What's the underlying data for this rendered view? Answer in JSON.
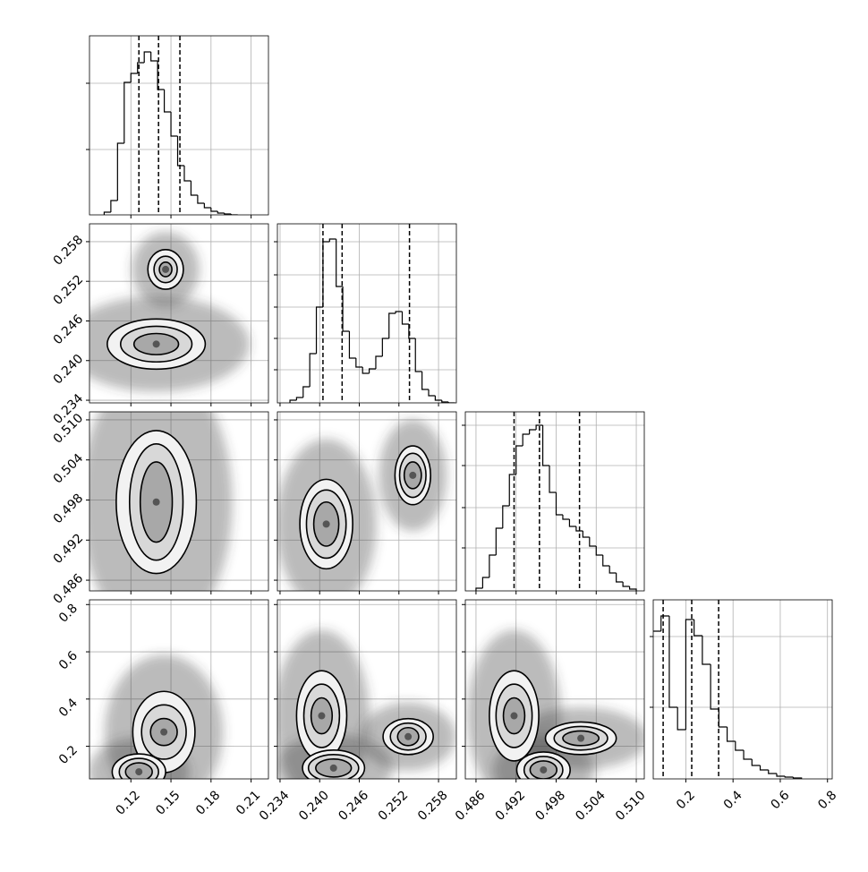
{
  "chart_data": {
    "type": "corner",
    "variables": [
      {
        "lim": [
          0.089,
          0.223
        ],
        "ticks": [
          0.12,
          0.15,
          0.18,
          0.21
        ],
        "quantiles": [
          0.126,
          0.1407,
          0.1567
        ],
        "hist": {
          "bins": [
            0.1,
            0.105,
            0.11,
            0.115,
            0.12,
            0.125,
            0.13,
            0.135,
            0.14,
            0.145,
            0.15,
            0.155,
            0.16,
            0.165,
            0.17,
            0.175,
            0.18,
            0.185,
            0.19,
            0.195,
            0.2
          ],
          "values": [
            3,
            16,
            80,
            148,
            158,
            170,
            182,
            172,
            140,
            115,
            88,
            55,
            38,
            22,
            13,
            8,
            4,
            2,
            1,
            0
          ],
          "ylim": [
            0,
            200
          ],
          "yticks": [
            73,
            147
          ]
        }
      },
      {
        "lim": [
          0.2336,
          0.2607
        ],
        "ticks": [
          0.234,
          {
            "value": 0.24,
            "label": "0.240"
          },
          0.246,
          0.252,
          0.258
        ],
        "quantiles": [
          0.2405,
          0.2434,
          0.2536
        ],
        "hist": {
          "bins": [
            0.2355,
            0.2365,
            0.2375,
            0.2385,
            0.2395,
            0.2405,
            0.2415,
            0.2425,
            0.2435,
            0.2445,
            0.2455,
            0.2465,
            0.2475,
            0.2485,
            0.2495,
            0.2505,
            0.2515,
            0.2525,
            0.2535,
            0.2545,
            0.2555,
            0.2565,
            0.2575,
            0.2585,
            0.2595,
            0.2605
          ],
          "values": [
            3,
            6,
            18,
            55,
            107,
            180,
            183,
            130,
            80,
            50,
            40,
            33,
            38,
            52,
            72,
            100,
            102,
            88,
            72,
            35,
            15,
            8,
            3,
            1,
            0
          ],
          "ylim": [
            0,
            200
          ],
          "yticks": [
            37,
            72,
            107,
            143,
            180
          ]
        }
      },
      {
        "lim": [
          0.4844,
          0.5112
        ],
        "ticks": [
          0.486,
          0.492,
          0.498,
          0.504,
          {
            "value": 0.51,
            "label": "0.510"
          }
        ],
        "quantiles": [
          0.4917,
          0.4955,
          0.5015
        ],
        "hist": {
          "bins": [
            0.486,
            0.487,
            0.488,
            0.489,
            0.49,
            0.491,
            0.492,
            0.493,
            0.494,
            0.495,
            0.496,
            0.497,
            0.498,
            0.499,
            0.5,
            0.501,
            0.502,
            0.503,
            0.504,
            0.505,
            0.506,
            0.507,
            0.508,
            0.509,
            0.51
          ],
          "values": [
            3,
            15,
            40,
            70,
            95,
            130,
            162,
            175,
            180,
            185,
            140,
            110,
            85,
            80,
            72,
            67,
            60,
            50,
            40,
            28,
            20,
            10,
            5,
            2
          ],
          "ylim": [
            0,
            200
          ],
          "yticks": [
            48,
            93,
            140,
            185
          ]
        }
      },
      {
        "lim": [
          0.062,
          0.82
        ],
        "ticks": [
          0.2,
          0.4,
          0.6,
          0.8
        ],
        "quantiles": [
          0.104,
          0.225,
          0.339
        ],
        "hist": {
          "bins": [
            0.06,
            0.095,
            0.13,
            0.165,
            0.2,
            0.235,
            0.27,
            0.305,
            0.34,
            0.375,
            0.41,
            0.445,
            0.48,
            0.515,
            0.55,
            0.585,
            0.62,
            0.655,
            0.69
          ],
          "values": [
            165,
            182,
            80,
            55,
            178,
            160,
            128,
            78,
            58,
            42,
            32,
            22,
            15,
            10,
            6,
            3,
            2,
            1
          ],
          "ylim": [
            0,
            200
          ],
          "yticks": [
            80,
            159
          ]
        }
      }
    ],
    "pairs": [
      {
        "blobs": [
          {
            "x": 0.146,
            "y": 0.2538,
            "rx": [
              0.0047,
              0.0087,
              0.0133
            ],
            "ry": [
              0.0011,
              0.002,
              0.003
            ]
          },
          {
            "x": 0.139,
            "y": 0.2425,
            "rx": [
              0.0167,
              0.0267,
              0.0367
            ],
            "ry": [
              0.0016,
              0.0027,
              0.0038
            ]
          }
        ]
      },
      {
        "blobs": [
          {
            "x": 0.139,
            "y": 0.4977,
            "rx": [
              0.012,
              0.02,
              0.03
            ],
            "ry": [
              0.006,
              0.0087,
              0.0107
            ]
          }
        ]
      },
      {
        "blobs": [
          {
            "x": 0.241,
            "y": 0.4944,
            "rx": [
              0.0019,
              0.003,
              0.004
            ],
            "ry": [
              0.0033,
              0.0051,
              0.0067
            ]
          },
          {
            "x": 0.2541,
            "y": 0.5017,
            "rx": [
              0.0013,
              0.002,
              0.0027
            ],
            "ry": [
              0.002,
              0.0033,
              0.0044
            ]
          }
        ]
      },
      {
        "blobs": [
          {
            "x": 0.1447,
            "y": 0.2605,
            "rx": [
              0.01,
              0.0167,
              0.0233
            ],
            "ry": [
              0.057,
              0.115,
              0.172
            ]
          },
          {
            "x": 0.126,
            "y": 0.092,
            "rx": [
              0.01,
              0.0147,
              0.02
            ],
            "ry": [
              0.038,
              0.057,
              0.076
            ]
          }
        ]
      },
      {
        "blobs": [
          {
            "x": 0.2403,
            "y": 0.329,
            "rx": [
              0.0016,
              0.0027,
              0.0038
            ],
            "ry": [
              0.076,
              0.134,
              0.191
            ]
          },
          {
            "x": 0.2534,
            "y": 0.241,
            "rx": [
              0.0016,
              0.0027,
              0.0038
            ],
            "ry": [
              0.038,
              0.057,
              0.076
            ]
          },
          {
            "x": 0.2421,
            "y": 0.108,
            "rx": [
              0.0027,
              0.0038,
              0.0047
            ],
            "ry": [
              0.038,
              0.057,
              0.076
            ]
          }
        ]
      },
      {
        "blobs": [
          {
            "x": 0.4917,
            "y": 0.329,
            "rx": [
              0.0016,
              0.0027,
              0.0037
            ],
            "ry": [
              0.076,
              0.134,
              0.191
            ]
          },
          {
            "x": 0.5017,
            "y": 0.234,
            "rx": [
              0.0027,
              0.004,
              0.0053
            ],
            "ry": [
              0.031,
              0.05,
              0.069
            ]
          },
          {
            "x": 0.4961,
            "y": 0.1,
            "rx": [
              0.002,
              0.0029,
              0.004
            ],
            "ry": [
              0.038,
              0.057,
              0.076
            ]
          }
        ]
      }
    ]
  }
}
